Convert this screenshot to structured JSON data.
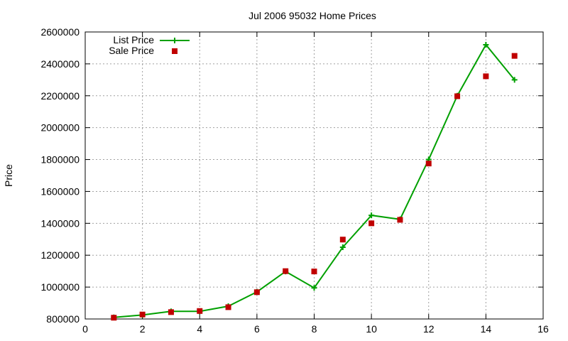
{
  "chart_data": {
    "type": "line",
    "title": "Jul 2006 95032 Home Prices",
    "xlabel": "",
    "ylabel": "Price",
    "xlim": [
      0,
      16
    ],
    "ylim": [
      800000,
      2600000
    ],
    "xticks": [
      0,
      2,
      4,
      6,
      8,
      10,
      12,
      14,
      16
    ],
    "yticks": [
      800000,
      1000000,
      1200000,
      1400000,
      1600000,
      1800000,
      2000000,
      2200000,
      2400000,
      2600000
    ],
    "grid": true,
    "legend": "top-left",
    "series": [
      {
        "name": "List Price",
        "style": "line-with-plus-markers",
        "color": "#00a000",
        "x": [
          1,
          2,
          3,
          4,
          5,
          6,
          7,
          8,
          9,
          10,
          11,
          12,
          13,
          14,
          15
        ],
        "values": [
          810000,
          825000,
          848000,
          848000,
          880000,
          970000,
          1098000,
          995000,
          1250000,
          1450000,
          1425000,
          1800000,
          2200000,
          2520000,
          2300000
        ]
      },
      {
        "name": "Sale Price",
        "style": "square-markers",
        "color": "#c00000",
        "x": [
          1,
          2,
          3,
          4,
          5,
          6,
          7,
          8,
          9,
          10,
          11,
          12,
          13,
          14,
          15
        ],
        "values": [
          808000,
          828000,
          843000,
          850000,
          874000,
          968000,
          1100000,
          1098000,
          1298000,
          1400000,
          1422000,
          1775000,
          2197000,
          2322000,
          2450000
        ]
      }
    ]
  }
}
